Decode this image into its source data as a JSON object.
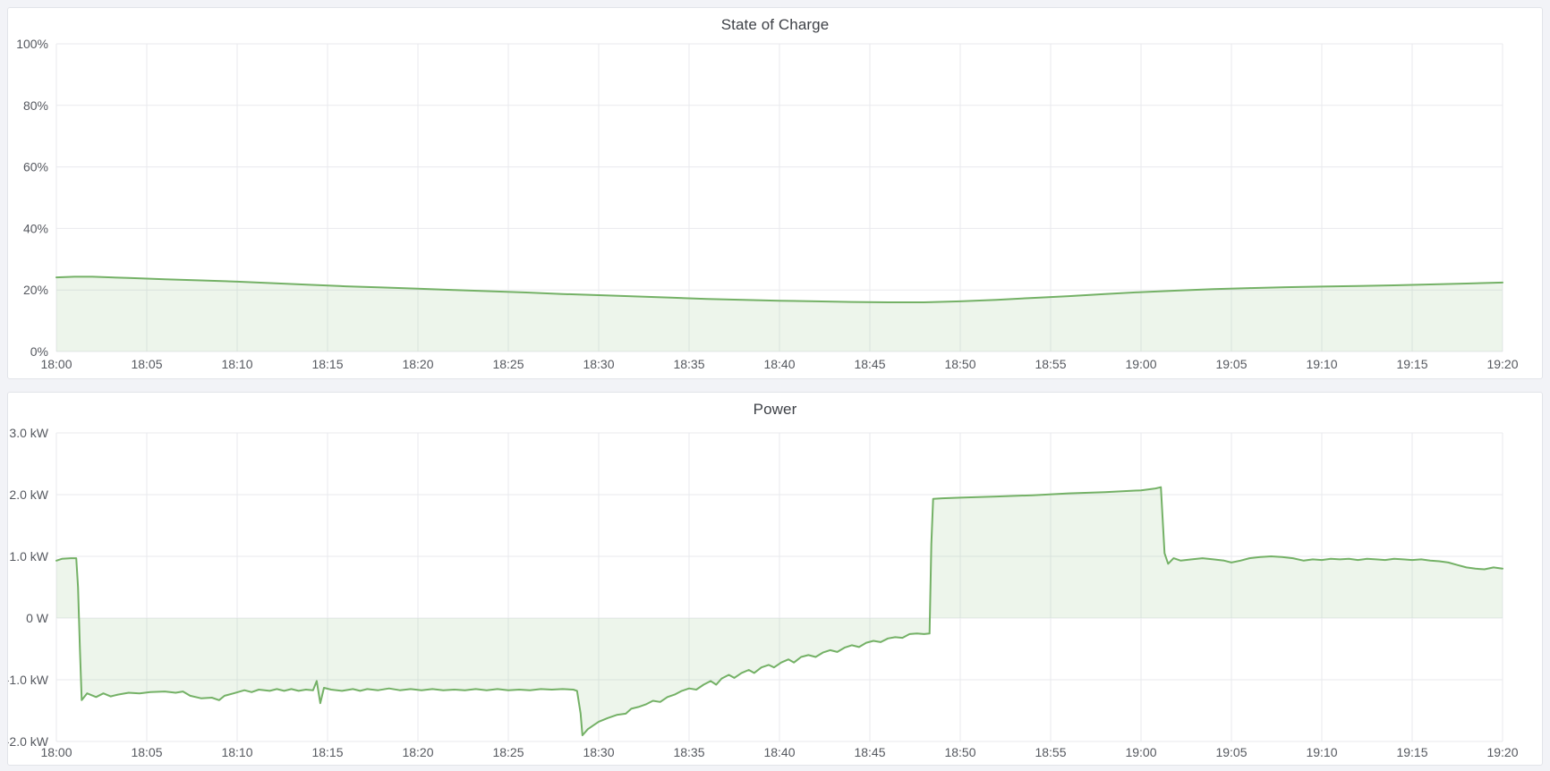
{
  "panels": [
    {
      "name": "state-of-charge"
    },
    {
      "name": "power"
    }
  ],
  "colors": {
    "series_line": "#74b166",
    "series_fill": "#73b266",
    "grid": "#e9eaee",
    "tick_text": "#55585f",
    "title_text": "#3e4147",
    "panel_bg": "#ffffff",
    "page_bg": "#f2f3f7"
  },
  "chart_data": [
    {
      "type": "area",
      "title": "State of Charge",
      "xlabel": "",
      "ylabel": "",
      "x_unit": "minutes after 18:00",
      "xlim": [
        0,
        80
      ],
      "ylim": [
        0,
        100
      ],
      "grid": true,
      "legend": "none",
      "baseline": 0,
      "x_ticks": [
        0,
        5,
        10,
        15,
        20,
        25,
        30,
        35,
        40,
        45,
        50,
        55,
        60,
        65,
        70,
        75,
        80
      ],
      "x_tick_labels": [
        "18:00",
        "18:05",
        "18:10",
        "18:15",
        "18:20",
        "18:25",
        "18:30",
        "18:35",
        "18:40",
        "18:45",
        "18:50",
        "18:55",
        "19:00",
        "19:05",
        "19:10",
        "19:15",
        "19:20"
      ],
      "y_ticks": [
        0,
        20,
        40,
        60,
        80,
        100
      ],
      "y_tick_labels": [
        "0%",
        "20%",
        "40%",
        "60%",
        "80%",
        "100%"
      ],
      "series": [
        {
          "name": "State of Charge",
          "points": [
            [
              0,
              24.1
            ],
            [
              1,
              24.3
            ],
            [
              2,
              24.3
            ],
            [
              4,
              23.9
            ],
            [
              6,
              23.5
            ],
            [
              8,
              23.1
            ],
            [
              10,
              22.7
            ],
            [
              12,
              22.2
            ],
            [
              14,
              21.7
            ],
            [
              16,
              21.2
            ],
            [
              18,
              20.8
            ],
            [
              20,
              20.4
            ],
            [
              22,
              20.0
            ],
            [
              24,
              19.6
            ],
            [
              26,
              19.2
            ],
            [
              28,
              18.7
            ],
            [
              30,
              18.3
            ],
            [
              32,
              17.9
            ],
            [
              34,
              17.5
            ],
            [
              36,
              17.1
            ],
            [
              38,
              16.8
            ],
            [
              40,
              16.5
            ],
            [
              42,
              16.3
            ],
            [
              44,
              16.1
            ],
            [
              46,
              16.0
            ],
            [
              48,
              16.0
            ],
            [
              50,
              16.3
            ],
            [
              52,
              16.8
            ],
            [
              54,
              17.4
            ],
            [
              56,
              18.0
            ],
            [
              58,
              18.7
            ],
            [
              60,
              19.3
            ],
            [
              62,
              19.8
            ],
            [
              64,
              20.3
            ],
            [
              66,
              20.6
            ],
            [
              68,
              20.9
            ],
            [
              70,
              21.1
            ],
            [
              72,
              21.3
            ],
            [
              74,
              21.5
            ],
            [
              76,
              21.8
            ],
            [
              78,
              22.1
            ],
            [
              80,
              22.4
            ]
          ]
        }
      ]
    },
    {
      "type": "area",
      "title": "Power",
      "xlabel": "",
      "ylabel": "",
      "x_unit": "minutes after 18:00",
      "xlim": [
        0,
        80
      ],
      "ylim": [
        -2,
        3
      ],
      "grid": true,
      "legend": "none",
      "baseline": 0,
      "x_ticks": [
        0,
        5,
        10,
        15,
        20,
        25,
        30,
        35,
        40,
        45,
        50,
        55,
        60,
        65,
        70,
        75,
        80
      ],
      "x_tick_labels": [
        "18:00",
        "18:05",
        "18:10",
        "18:15",
        "18:20",
        "18:25",
        "18:30",
        "18:35",
        "18:40",
        "18:45",
        "18:50",
        "18:55",
        "19:00",
        "19:05",
        "19:10",
        "19:15",
        "19:20"
      ],
      "y_ticks": [
        -2,
        -1,
        0,
        1,
        2,
        3
      ],
      "y_tick_labels": [
        "-2.0 kW",
        "-1.0 kW",
        "0 W",
        "1.0 kW",
        "2.0 kW",
        "3.0 kW"
      ],
      "series": [
        {
          "name": "Power",
          "points": [
            [
              0,
              0.93
            ],
            [
              0.3,
              0.96
            ],
            [
              0.8,
              0.97
            ],
            [
              1.1,
              0.97
            ],
            [
              1.2,
              0.5
            ],
            [
              1.3,
              -0.5
            ],
            [
              1.4,
              -1.33
            ],
            [
              1.7,
              -1.22
            ],
            [
              2.2,
              -1.28
            ],
            [
              2.6,
              -1.22
            ],
            [
              3.0,
              -1.27
            ],
            [
              3.4,
              -1.24
            ],
            [
              4.0,
              -1.21
            ],
            [
              4.6,
              -1.22
            ],
            [
              5.2,
              -1.2
            ],
            [
              6.0,
              -1.19
            ],
            [
              6.6,
              -1.21
            ],
            [
              7.0,
              -1.19
            ],
            [
              7.4,
              -1.26
            ],
            [
              8.0,
              -1.3
            ],
            [
              8.6,
              -1.29
            ],
            [
              9.0,
              -1.33
            ],
            [
              9.3,
              -1.26
            ],
            [
              9.8,
              -1.22
            ],
            [
              10.4,
              -1.17
            ],
            [
              10.8,
              -1.2
            ],
            [
              11.2,
              -1.16
            ],
            [
              11.8,
              -1.18
            ],
            [
              12.2,
              -1.15
            ],
            [
              12.6,
              -1.18
            ],
            [
              13.0,
              -1.15
            ],
            [
              13.4,
              -1.18
            ],
            [
              13.8,
              -1.16
            ],
            [
              14.2,
              -1.17
            ],
            [
              14.4,
              -1.02
            ],
            [
              14.6,
              -1.38
            ],
            [
              14.8,
              -1.13
            ],
            [
              15.2,
              -1.16
            ],
            [
              15.8,
              -1.18
            ],
            [
              16.4,
              -1.15
            ],
            [
              16.8,
              -1.18
            ],
            [
              17.2,
              -1.15
            ],
            [
              17.8,
              -1.17
            ],
            [
              18.4,
              -1.14
            ],
            [
              19.0,
              -1.17
            ],
            [
              19.6,
              -1.15
            ],
            [
              20.2,
              -1.17
            ],
            [
              20.8,
              -1.15
            ],
            [
              21.4,
              -1.17
            ],
            [
              22.0,
              -1.16
            ],
            [
              22.6,
              -1.17
            ],
            [
              23.2,
              -1.15
            ],
            [
              23.8,
              -1.17
            ],
            [
              24.4,
              -1.15
            ],
            [
              25.0,
              -1.17
            ],
            [
              25.6,
              -1.16
            ],
            [
              26.2,
              -1.17
            ],
            [
              26.8,
              -1.15
            ],
            [
              27.4,
              -1.16
            ],
            [
              28.0,
              -1.15
            ],
            [
              28.6,
              -1.16
            ],
            [
              28.8,
              -1.18
            ],
            [
              29.0,
              -1.55
            ],
            [
              29.1,
              -1.9
            ],
            [
              29.4,
              -1.8
            ],
            [
              29.7,
              -1.74
            ],
            [
              30.0,
              -1.68
            ],
            [
              30.5,
              -1.62
            ],
            [
              31.0,
              -1.57
            ],
            [
              31.5,
              -1.55
            ],
            [
              31.8,
              -1.47
            ],
            [
              32.2,
              -1.44
            ],
            [
              32.6,
              -1.4
            ],
            [
              33.0,
              -1.34
            ],
            [
              33.4,
              -1.36
            ],
            [
              33.8,
              -1.28
            ],
            [
              34.2,
              -1.24
            ],
            [
              34.6,
              -1.18
            ],
            [
              35.0,
              -1.14
            ],
            [
              35.4,
              -1.16
            ],
            [
              35.8,
              -1.08
            ],
            [
              36.2,
              -1.02
            ],
            [
              36.5,
              -1.08
            ],
            [
              36.8,
              -0.98
            ],
            [
              37.2,
              -0.92
            ],
            [
              37.5,
              -0.97
            ],
            [
              37.9,
              -0.89
            ],
            [
              38.3,
              -0.84
            ],
            [
              38.6,
              -0.89
            ],
            [
              39.0,
              -0.8
            ],
            [
              39.4,
              -0.76
            ],
            [
              39.7,
              -0.8
            ],
            [
              40.1,
              -0.72
            ],
            [
              40.5,
              -0.67
            ],
            [
              40.8,
              -0.72
            ],
            [
              41.2,
              -0.63
            ],
            [
              41.6,
              -0.6
            ],
            [
              42.0,
              -0.63
            ],
            [
              42.4,
              -0.56
            ],
            [
              42.8,
              -0.52
            ],
            [
              43.2,
              -0.55
            ],
            [
              43.6,
              -0.48
            ],
            [
              44.0,
              -0.44
            ],
            [
              44.4,
              -0.47
            ],
            [
              44.8,
              -0.4
            ],
            [
              45.2,
              -0.37
            ],
            [
              45.6,
              -0.39
            ],
            [
              46.0,
              -0.33
            ],
            [
              46.4,
              -0.31
            ],
            [
              46.8,
              -0.32
            ],
            [
              47.2,
              -0.26
            ],
            [
              47.6,
              -0.25
            ],
            [
              48.0,
              -0.26
            ],
            [
              48.3,
              -0.25
            ],
            [
              48.4,
              1.2
            ],
            [
              48.5,
              1.93
            ],
            [
              49.0,
              1.94
            ],
            [
              50.0,
              1.95
            ],
            [
              52.0,
              1.97
            ],
            [
              54.0,
              1.99
            ],
            [
              56.0,
              2.02
            ],
            [
              58.0,
              2.04
            ],
            [
              60.0,
              2.07
            ],
            [
              60.8,
              2.1
            ],
            [
              61.1,
              2.12
            ],
            [
              61.3,
              1.05
            ],
            [
              61.5,
              0.88
            ],
            [
              61.8,
              0.97
            ],
            [
              62.2,
              0.93
            ],
            [
              62.8,
              0.95
            ],
            [
              63.4,
              0.97
            ],
            [
              64.0,
              0.95
            ],
            [
              64.6,
              0.93
            ],
            [
              65.0,
              0.9
            ],
            [
              65.5,
              0.93
            ],
            [
              66.0,
              0.97
            ],
            [
              66.6,
              0.99
            ],
            [
              67.2,
              1.0
            ],
            [
              67.8,
              0.99
            ],
            [
              68.4,
              0.97
            ],
            [
              69.0,
              0.93
            ],
            [
              69.5,
              0.95
            ],
            [
              70.0,
              0.94
            ],
            [
              70.5,
              0.96
            ],
            [
              71.0,
              0.95
            ],
            [
              71.5,
              0.96
            ],
            [
              72.0,
              0.94
            ],
            [
              72.5,
              0.96
            ],
            [
              73.0,
              0.95
            ],
            [
              73.5,
              0.94
            ],
            [
              74.0,
              0.96
            ],
            [
              74.5,
              0.95
            ],
            [
              75.0,
              0.94
            ],
            [
              75.5,
              0.95
            ],
            [
              76.0,
              0.93
            ],
            [
              76.5,
              0.92
            ],
            [
              77.0,
              0.9
            ],
            [
              77.5,
              0.86
            ],
            [
              78.0,
              0.82
            ],
            [
              78.5,
              0.8
            ],
            [
              79.0,
              0.79
            ],
            [
              79.5,
              0.82
            ],
            [
              80.0,
              0.8
            ]
          ]
        }
      ]
    }
  ]
}
